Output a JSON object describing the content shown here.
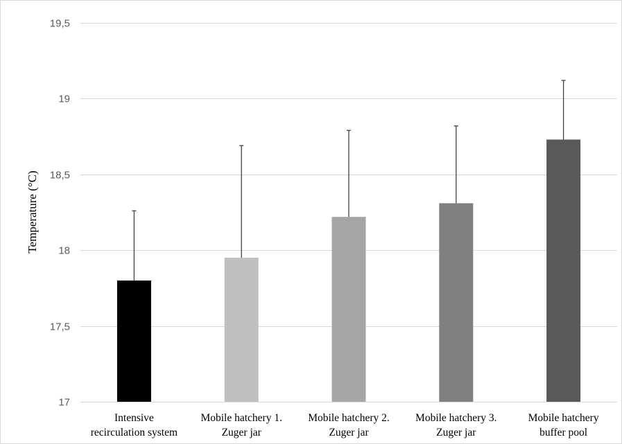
{
  "chart_data": {
    "type": "bar",
    "title": "",
    "xlabel": "",
    "ylabel": "Temperature (°C)",
    "ylim": [
      17,
      19.5
    ],
    "yticks": [
      17,
      17.5,
      18,
      18.5,
      19,
      19.5
    ],
    "ytick_labels": [
      "17",
      "17,5",
      "18",
      "18,5",
      "19",
      "19,5"
    ],
    "grid": true,
    "legend": "none",
    "categories": [
      [
        "Intensive",
        "recirculation system"
      ],
      [
        "Mobile hatchery 1.",
        "Zuger jar"
      ],
      [
        "Mobile hatchery 2.",
        "Zuger jar"
      ],
      [
        "Mobile hatchery 3.",
        "Zuger jar"
      ],
      [
        "Mobile hatchery",
        "buffer pool"
      ]
    ],
    "values": [
      17.8,
      17.95,
      18.22,
      18.31,
      18.73
    ],
    "error_upper": [
      18.26,
      18.69,
      18.79,
      18.82,
      19.12
    ],
    "colors": [
      "#000000",
      "#bfbfbf",
      "#a6a6a6",
      "#7f7f7f",
      "#595959"
    ],
    "grid_color": "#d9d9d9"
  }
}
